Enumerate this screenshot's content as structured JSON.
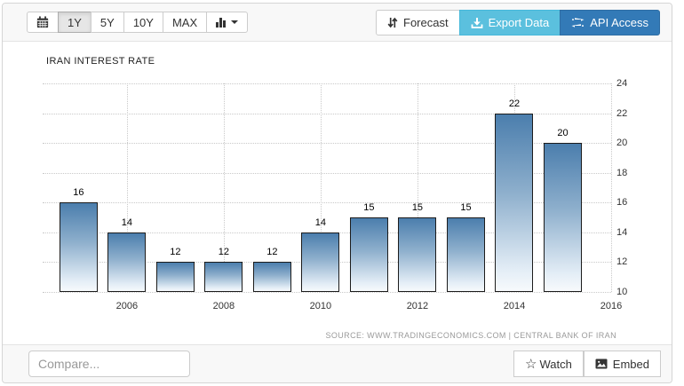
{
  "toolbar": {
    "range_buttons": [
      {
        "label": "1Y",
        "active": true
      },
      {
        "label": "5Y",
        "active": false
      },
      {
        "label": "10Y",
        "active": false
      },
      {
        "label": "MAX",
        "active": false
      }
    ],
    "forecast_label": "Forecast",
    "export_label": "Export Data",
    "api_label": "API Access"
  },
  "chart": {
    "title": "IRAN INTEREST RATE",
    "source": "SOURCE: WWW.TRADINGECONOMICS.COM | CENTRAL BANK OF IRAN"
  },
  "chart_data": {
    "type": "bar",
    "title": "IRAN INTEREST RATE",
    "x": [
      2005,
      2006,
      2007,
      2008,
      2009,
      2010,
      2011,
      2012,
      2013,
      2014,
      2015
    ],
    "values": [
      16,
      14,
      12,
      12,
      12,
      14,
      15,
      15,
      15,
      22,
      20
    ],
    "data_labels": true,
    "xticks": [
      2006,
      2008,
      2010,
      2012,
      2014,
      2016
    ],
    "yticks": [
      10,
      12,
      14,
      16,
      18,
      20,
      22,
      24
    ],
    "ylim": [
      10,
      24
    ],
    "xlim": [
      2004.26,
      2016
    ],
    "grid": "dotted",
    "legend": "none",
    "y_axis_side": "right",
    "source": "SOURCE: WWW.TRADINGECONOMICS.COM | CENTRAL BANK OF IRAN"
  },
  "footer": {
    "compare_placeholder": "Compare...",
    "watch_label": "Watch",
    "embed_label": "Embed",
    "watch_star_glyph": "☆"
  },
  "icons": {
    "calendar": "calendar-icon",
    "chart_type": "bar-chart-icon",
    "dropdown": "caret-down-icon",
    "forecast": "sort-arrows-icon",
    "export": "download-icon",
    "api": "transfer-arrows-icon",
    "watch": "star-outline-icon",
    "embed": "image-icon"
  },
  "colors": {
    "export_button_bg": "#5bc0de",
    "api_button_bg": "#337ab7",
    "active_range_bg": "#e6e6e6",
    "bar_gradient_top": "#4b7ead",
    "bar_gradient_bottom": "#f7fafc",
    "bar_border": "#1c1c1c",
    "grid_color": "#c9c9c9",
    "source_text": "#9a9a9a"
  }
}
